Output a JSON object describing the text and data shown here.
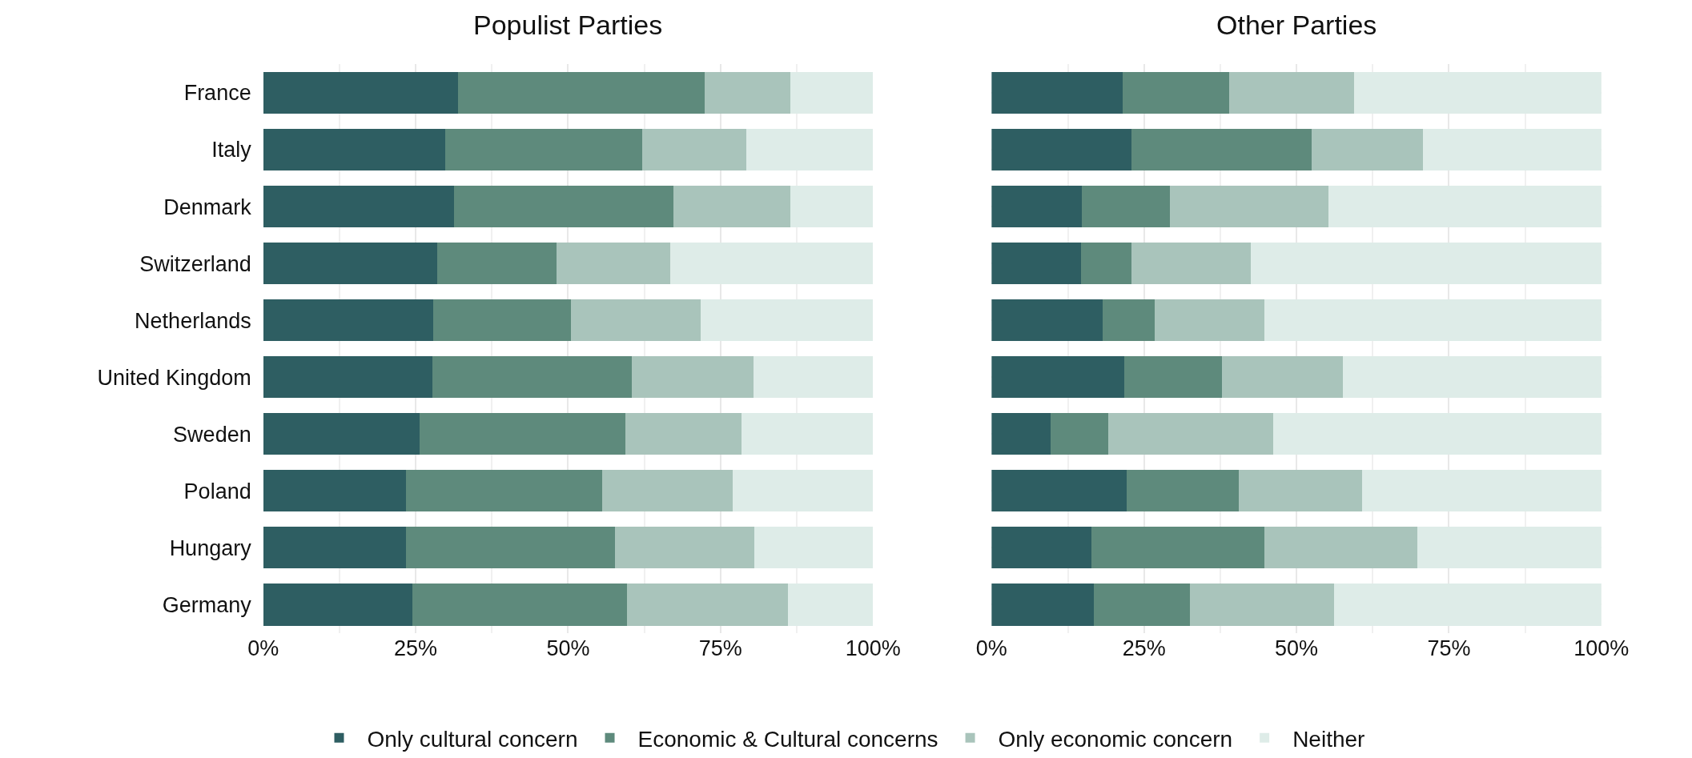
{
  "chart_data": [
    {
      "type": "bar",
      "orientation": "horizontal",
      "stacked": true,
      "title": "Populist Parties",
      "categories": [
        "France",
        "Italy",
        "Denmark",
        "Switzerland",
        "Netherlands",
        "United Kingdom",
        "Sweden",
        "Poland",
        "Hungary",
        "Germany"
      ],
      "series": [
        {
          "name": "Only cultural concern",
          "color": "#2e5e62",
          "values": [
            31.9,
            29.9,
            31.3,
            28.5,
            27.9,
            27.7,
            25.6,
            23.4,
            23.4,
            24.4
          ]
        },
        {
          "name": "Economic & Cultural concerns",
          "color": "#5e8a7c",
          "values": [
            40.5,
            32.3,
            36.0,
            19.6,
            22.6,
            32.7,
            33.8,
            32.2,
            34.3,
            35.2
          ]
        },
        {
          "name": "Only economic concern",
          "color": "#a9c4bb",
          "values": [
            14.1,
            17.0,
            19.2,
            18.6,
            21.3,
            20.0,
            19.0,
            21.4,
            22.9,
            26.5
          ]
        },
        {
          "name": "Neither",
          "color": "#deece8",
          "values": [
            13.5,
            20.8,
            13.5,
            33.3,
            28.2,
            19.6,
            21.6,
            23.0,
            19.4,
            13.9
          ]
        }
      ],
      "xlim": [
        0,
        100
      ],
      "xticks": [
        {
          "value": 0,
          "label": "0%"
        },
        {
          "value": 25,
          "label": "25%"
        },
        {
          "value": 50,
          "label": "50%"
        },
        {
          "value": 75,
          "label": "75%"
        },
        {
          "value": 100,
          "label": "100%"
        }
      ],
      "grid": true,
      "legend": "bottom"
    },
    {
      "type": "bar",
      "orientation": "horizontal",
      "stacked": true,
      "title": "Other Parties",
      "categories": [
        "France",
        "Italy",
        "Denmark",
        "Switzerland",
        "Netherlands",
        "United Kingdom",
        "Sweden",
        "Poland",
        "Hungary",
        "Germany"
      ],
      "series": [
        {
          "name": "Only cultural concern",
          "color": "#2e5e62",
          "values": [
            21.5,
            22.9,
            14.8,
            14.6,
            18.2,
            21.7,
            9.7,
            22.1,
            16.4,
            16.8
          ]
        },
        {
          "name": "Economic & Cultural concerns",
          "color": "#5e8a7c",
          "values": [
            17.5,
            29.6,
            14.5,
            8.4,
            8.6,
            16.1,
            9.4,
            18.4,
            28.3,
            15.7
          ]
        },
        {
          "name": "Only economic concern",
          "color": "#a9c4bb",
          "values": [
            20.4,
            18.2,
            25.9,
            19.5,
            18.0,
            19.8,
            27.1,
            20.2,
            25.1,
            23.7
          ]
        },
        {
          "name": "Neither",
          "color": "#deece8",
          "values": [
            40.6,
            29.3,
            44.8,
            57.5,
            55.2,
            42.4,
            53.8,
            39.3,
            30.2,
            43.8
          ]
        }
      ],
      "xlim": [
        0,
        100
      ],
      "xticks": [
        {
          "value": 0,
          "label": "0%"
        },
        {
          "value": 25,
          "label": "25%"
        },
        {
          "value": 50,
          "label": "50%"
        },
        {
          "value": 75,
          "label": "75%"
        },
        {
          "value": 100,
          "label": "100%"
        }
      ],
      "grid": true,
      "legend": "bottom",
      "tick_labels": "x"
    }
  ]
}
